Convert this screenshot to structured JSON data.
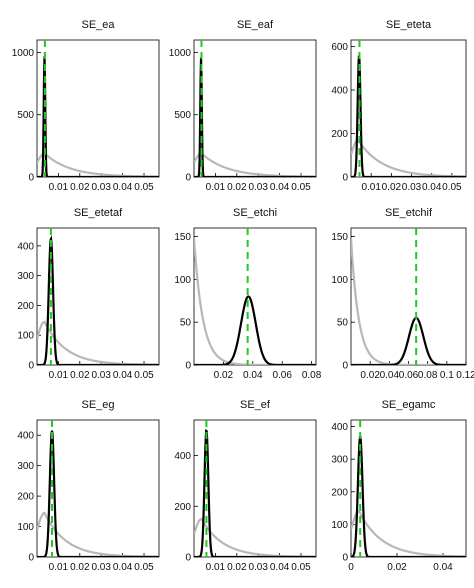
{
  "figure": {
    "colors": {
      "prior": "#b8b8b8",
      "posterior": "#000000",
      "mode": "#22c822"
    }
  },
  "chart_data": [
    {
      "type": "line",
      "title": "SE_ea",
      "xlim": [
        0,
        0.057
      ],
      "ylim": [
        0,
        1100
      ],
      "xticks": [
        {
          "v": 0.01,
          "l": "0.01"
        },
        {
          "v": 0.02,
          "l": "0.02"
        },
        {
          "v": 0.03,
          "l": "0.03"
        },
        {
          "v": 0.04,
          "l": "0.04"
        },
        {
          "v": 0.05,
          "l": "0.05"
        }
      ],
      "yticks": [
        {
          "v": 0,
          "l": "0"
        },
        {
          "v": 500,
          "l": "500"
        },
        {
          "v": 1000,
          "l": "1000"
        }
      ],
      "prior": {
        "mu": 0.0035,
        "sig": 0.0035,
        "pk": 190,
        "sc": 0.012
      },
      "posterior": {
        "mu": 0.0035,
        "sd": 0.00035,
        "peak": 970
      },
      "mode": 0.0037
    },
    {
      "type": "line",
      "title": "SE_eaf",
      "xlim": [
        0,
        0.057
      ],
      "ylim": [
        0,
        1100
      ],
      "xticks": [
        {
          "v": 0.01,
          "l": "0.01"
        },
        {
          "v": 0.02,
          "l": "0.02"
        },
        {
          "v": 0.03,
          "l": "0.03"
        },
        {
          "v": 0.04,
          "l": "0.04"
        },
        {
          "v": 0.05,
          "l": "0.05"
        }
      ],
      "yticks": [
        {
          "v": 0,
          "l": "0"
        },
        {
          "v": 500,
          "l": "500"
        },
        {
          "v": 1000,
          "l": "1000"
        }
      ],
      "prior": {
        "mu": 0.0035,
        "sig": 0.0035,
        "pk": 190,
        "sc": 0.012
      },
      "posterior": {
        "mu": 0.0033,
        "sd": 0.00035,
        "peak": 960
      },
      "mode": 0.0035
    },
    {
      "type": "line",
      "title": "SE_eteta",
      "xlim": [
        0,
        0.057
      ],
      "ylim": [
        0,
        630
      ],
      "xticks": [
        {
          "v": 0.01,
          "l": "0.01"
        },
        {
          "v": 0.02,
          "l": "0.02"
        },
        {
          "v": 0.03,
          "l": "0.03"
        },
        {
          "v": 0.04,
          "l": "0.04"
        },
        {
          "v": 0.05,
          "l": "0.05"
        }
      ],
      "yticks": [
        {
          "v": 0,
          "l": "0"
        },
        {
          "v": 200,
          "l": "200"
        },
        {
          "v": 400,
          "l": "400"
        },
        {
          "v": 600,
          "l": "600"
        }
      ],
      "prior": {
        "mu": 0.0035,
        "sig": 0.0035,
        "pk": 170,
        "sc": 0.012
      },
      "posterior": {
        "mu": 0.004,
        "sd": 0.0007,
        "peak": 560
      },
      "mode": 0.0042
    },
    {
      "type": "line",
      "title": "SE_etetaf",
      "xlim": [
        0,
        0.057
      ],
      "ylim": [
        0,
        460
      ],
      "xticks": [
        {
          "v": 0.01,
          "l": "0.01"
        },
        {
          "v": 0.02,
          "l": "0.02"
        },
        {
          "v": 0.03,
          "l": "0.03"
        },
        {
          "v": 0.04,
          "l": "0.04"
        },
        {
          "v": 0.05,
          "l": "0.05"
        }
      ],
      "yticks": [
        {
          "v": 0,
          "l": "0"
        },
        {
          "v": 100,
          "l": "100"
        },
        {
          "v": 200,
          "l": "200"
        },
        {
          "v": 300,
          "l": "300"
        },
        {
          "v": 400,
          "l": "400"
        }
      ],
      "prior": {
        "mu": 0.0035,
        "sig": 0.0035,
        "pk": 145,
        "sc": 0.01
      },
      "posterior": {
        "mu": 0.0065,
        "sd": 0.001,
        "peak": 425
      },
      "mode": 0.0065
    },
    {
      "type": "line",
      "title": "SE_etchi",
      "xlim": [
        0,
        0.083
      ],
      "ylim": [
        0,
        160
      ],
      "xticks": [
        {
          "v": 0.02,
          "l": "0.02"
        },
        {
          "v": 0.04,
          "l": "0.04"
        },
        {
          "v": 0.06,
          "l": "0.06"
        },
        {
          "v": 0.08,
          "l": "0.08"
        }
      ],
      "yticks": [
        {
          "v": 0,
          "l": "0"
        },
        {
          "v": 50,
          "l": "50"
        },
        {
          "v": 100,
          "l": "100"
        },
        {
          "v": 150,
          "l": "150"
        }
      ],
      "prior": {
        "mu": 0,
        "sig": 0.0018,
        "pk": 148,
        "sc": 0.006
      },
      "posterior": {
        "mu": 0.037,
        "sd": 0.005,
        "peak": 80
      },
      "mode": 0.0365
    },
    {
      "type": "line",
      "title": "SE_etchif",
      "xlim": [
        0,
        0.12
      ],
      "ylim": [
        0,
        160
      ],
      "xticks": [
        {
          "v": 0.02,
          "l": "0.02"
        },
        {
          "v": 0.04,
          "l": "0.04"
        },
        {
          "v": 0.06,
          "l": "0.06"
        },
        {
          "v": 0.08,
          "l": "0.08"
        },
        {
          "v": 0.1,
          "l": "0.1"
        },
        {
          "v": 0.12,
          "l": "0.12"
        }
      ],
      "yticks": [
        {
          "v": 0,
          "l": "0"
        },
        {
          "v": 50,
          "l": "50"
        },
        {
          "v": 100,
          "l": "100"
        },
        {
          "v": 150,
          "l": "150"
        }
      ],
      "prior": {
        "mu": 0,
        "sig": 0.0025,
        "pk": 148,
        "sc": 0.008
      },
      "posterior": {
        "mu": 0.068,
        "sd": 0.0075,
        "peak": 55
      },
      "mode": 0.068
    },
    {
      "type": "line",
      "title": "SE_eg",
      "xlim": [
        0,
        0.057
      ],
      "ylim": [
        0,
        450
      ],
      "xticks": [
        {
          "v": 0.01,
          "l": "0.01"
        },
        {
          "v": 0.02,
          "l": "0.02"
        },
        {
          "v": 0.03,
          "l": "0.03"
        },
        {
          "v": 0.04,
          "l": "0.04"
        },
        {
          "v": 0.05,
          "l": "0.05"
        }
      ],
      "yticks": [
        {
          "v": 0,
          "l": "0"
        },
        {
          "v": 100,
          "l": "100"
        },
        {
          "v": 200,
          "l": "200"
        },
        {
          "v": 300,
          "l": "300"
        },
        {
          "v": 400,
          "l": "400"
        }
      ],
      "prior": {
        "mu": 0.0035,
        "sig": 0.0035,
        "pk": 145,
        "sc": 0.01
      },
      "posterior": {
        "mu": 0.007,
        "sd": 0.001,
        "peak": 415
      },
      "mode": 0.007
    },
    {
      "type": "line",
      "title": "SE_ef",
      "xlim": [
        0,
        0.057
      ],
      "ylim": [
        0,
        540
      ],
      "xticks": [
        {
          "v": 0.01,
          "l": "0.01"
        },
        {
          "v": 0.02,
          "l": "0.02"
        },
        {
          "v": 0.03,
          "l": "0.03"
        },
        {
          "v": 0.04,
          "l": "0.04"
        },
        {
          "v": 0.05,
          "l": "0.05"
        }
      ],
      "yticks": [
        {
          "v": 0,
          "l": "0"
        },
        {
          "v": 200,
          "l": "200"
        },
        {
          "v": 400,
          "l": "400"
        }
      ],
      "prior": {
        "mu": 0.0035,
        "sig": 0.0035,
        "pk": 150,
        "sc": 0.01
      },
      "posterior": {
        "mu": 0.0058,
        "sd": 0.0009,
        "peak": 500
      },
      "mode": 0.0058
    },
    {
      "type": "line",
      "title": "SE_egamc",
      "xlim": [
        0,
        0.05
      ],
      "ylim": [
        0,
        420
      ],
      "xticks": [
        {
          "v": 0,
          "l": "0"
        },
        {
          "v": 0.02,
          "l": "0.02"
        },
        {
          "v": 0.04,
          "l": "0.04"
        }
      ],
      "yticks": [
        {
          "v": 0,
          "l": "0"
        },
        {
          "v": 100,
          "l": "100"
        },
        {
          "v": 200,
          "l": "200"
        },
        {
          "v": 300,
          "l": "300"
        },
        {
          "v": 400,
          "l": "400"
        }
      ],
      "prior": {
        "mu": 0.0035,
        "sig": 0.0035,
        "pk": 140,
        "sc": 0.01
      },
      "posterior": {
        "mu": 0.004,
        "sd": 0.001,
        "peak": 370
      },
      "mode": 0.004
    }
  ]
}
